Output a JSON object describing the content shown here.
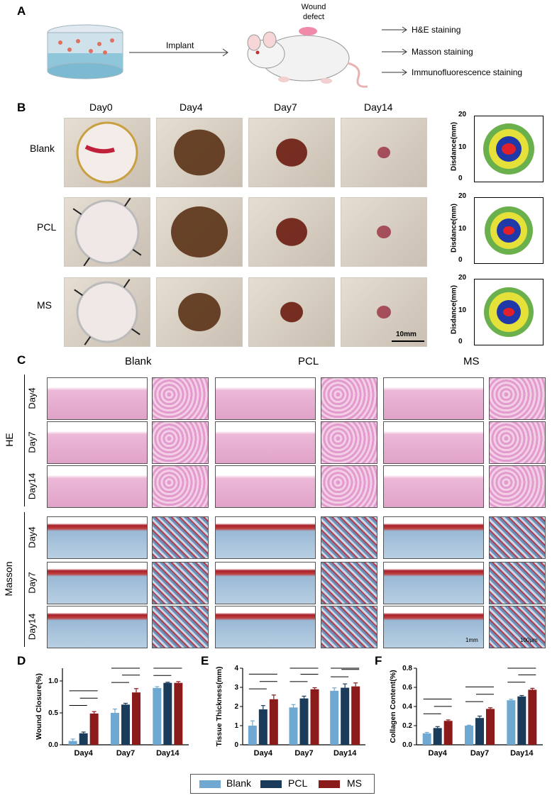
{
  "panels": {
    "A": "A",
    "B": "B",
    "C": "C",
    "D": "D",
    "E": "E",
    "F": "F"
  },
  "panelA": {
    "wound_label_1": "Wound",
    "wound_label_2": "defect",
    "implant": "Implant",
    "stains": [
      "H&E staining",
      "Masson staining",
      "Immunofluorescence staining"
    ]
  },
  "panelB": {
    "days": [
      "Day0",
      "Day4",
      "Day7",
      "Day14"
    ],
    "groups": [
      "Blank",
      "PCL",
      "MS"
    ],
    "scalebar": "10mm",
    "ylabel": "Disdance(mm)",
    "yticks": [
      "20",
      "10",
      "0"
    ]
  },
  "panelC": {
    "groups": [
      "Blank",
      "PCL",
      "MS"
    ],
    "stains": [
      "HE",
      "Masson"
    ],
    "days": [
      "Day4",
      "Day7",
      "Day14"
    ],
    "scalebar_low": "1mm",
    "scalebar_high": "100μm"
  },
  "colors": {
    "blank": "#6fa8d0",
    "pcl": "#1a3c5a",
    "ms": "#8b1a1a",
    "he_tissue": "#e6a9cf",
    "masson_blue": "#9ab9d6",
    "masson_red": "#a8202a",
    "skin": "#d8cfc2"
  },
  "legend": [
    "Blank",
    "PCL",
    "MS"
  ],
  "chart_data": [
    {
      "type": "bar",
      "panel": "D",
      "ylabel": "Wound Closure(%)",
      "categories": [
        "Day4",
        "Day7",
        "Day14"
      ],
      "ylim": [
        0,
        1.2
      ],
      "yticks": [
        "0.0",
        "0.5",
        "1.0"
      ],
      "series": [
        {
          "name": "Blank",
          "values": [
            0.06,
            0.5,
            0.89
          ],
          "errors": [
            0.03,
            0.06,
            0.02
          ]
        },
        {
          "name": "PCL",
          "values": [
            0.18,
            0.63,
            0.97
          ],
          "errors": [
            0.02,
            0.02,
            0.01
          ]
        },
        {
          "name": "MS",
          "values": [
            0.49,
            0.82,
            0.97
          ],
          "errors": [
            0.03,
            0.06,
            0.02
          ]
        }
      ]
    },
    {
      "type": "bar",
      "panel": "E",
      "ylabel": "Tissue Thickness(mm)",
      "categories": [
        "Day4",
        "Day7",
        "Day14"
      ],
      "ylim": [
        0,
        4
      ],
      "yticks": [
        "0",
        "1",
        "2",
        "3",
        "4"
      ],
      "series": [
        {
          "name": "Blank",
          "values": [
            1.0,
            1.95,
            2.82
          ],
          "errors": [
            0.25,
            0.15,
            0.15
          ]
        },
        {
          "name": "PCL",
          "values": [
            1.85,
            2.42,
            2.98
          ],
          "errors": [
            0.2,
            0.12,
            0.2
          ]
        },
        {
          "name": "MS",
          "values": [
            2.38,
            2.9,
            3.05
          ],
          "errors": [
            0.22,
            0.08,
            0.18
          ]
        }
      ]
    },
    {
      "type": "bar",
      "panel": "F",
      "ylabel": "Collagen Content(%)",
      "categories": [
        "Day4",
        "Day7",
        "Day14"
      ],
      "ylim": [
        0,
        0.8
      ],
      "yticks": [
        "0.0",
        "0.2",
        "0.4",
        "0.6",
        "0.8"
      ],
      "series": [
        {
          "name": "Blank",
          "values": [
            0.12,
            0.2,
            0.465
          ],
          "errors": [
            0.01,
            0.005,
            0.01
          ]
        },
        {
          "name": "PCL",
          "values": [
            0.175,
            0.28,
            0.505
          ],
          "errors": [
            0.015,
            0.02,
            0.01
          ]
        },
        {
          "name": "MS",
          "values": [
            0.25,
            0.375,
            0.575
          ],
          "errors": [
            0.01,
            0.012,
            0.015
          ]
        }
      ]
    }
  ]
}
